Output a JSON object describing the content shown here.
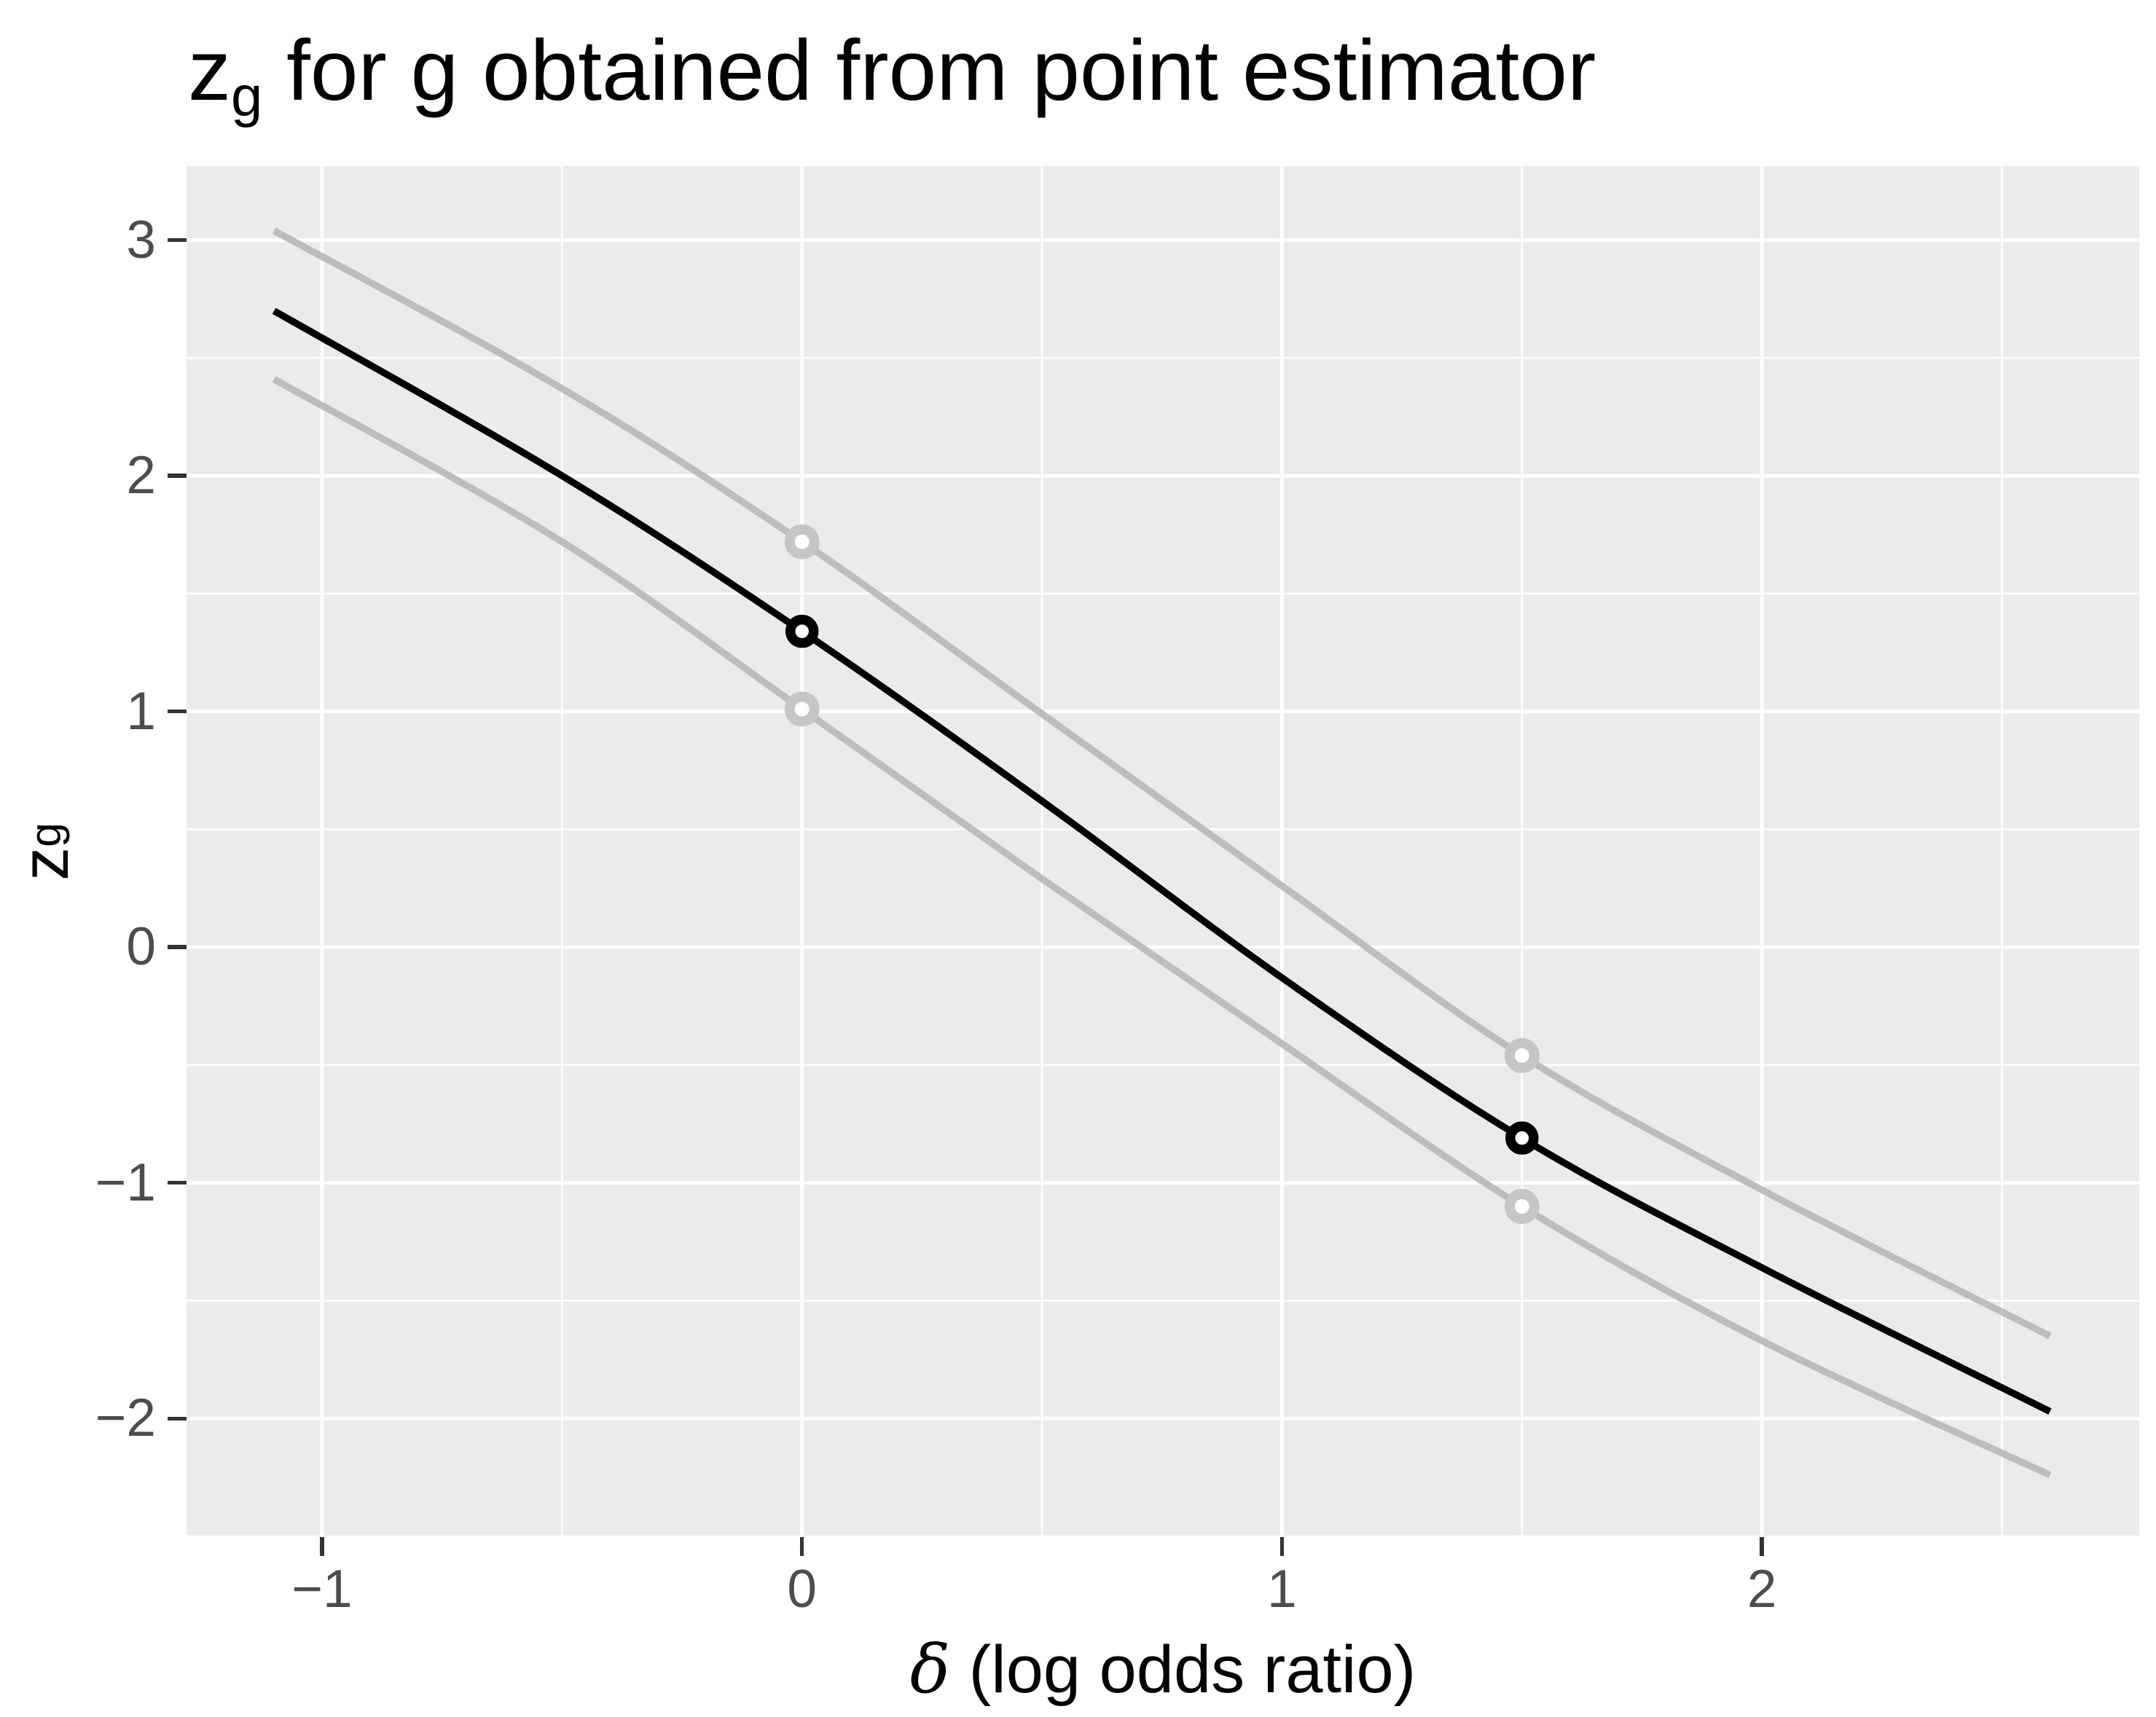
{
  "title": {
    "base": "z",
    "sub": "g",
    "rest": " for g obtained from point estimator"
  },
  "axes": {
    "x": {
      "title_symbol": "δ",
      "title_rest": " (log odds ratio)"
    },
    "y": {
      "title_base": "z",
      "title_sub": "g"
    }
  },
  "chart_data": {
    "type": "line",
    "title": "z_g for g obtained from point estimator",
    "xlabel": "δ (log odds ratio)",
    "ylabel": "z_g",
    "x_range": [
      -1.2823,
      2.786
    ],
    "y_range": [
      -2.503,
      3.314
    ],
    "grid": "on",
    "legend": "none",
    "x_ticks": [
      {
        "v": -1,
        "label": "−1"
      },
      {
        "v": 0,
        "label": "0"
      },
      {
        "v": 1,
        "label": "1"
      },
      {
        "v": 2,
        "label": "2"
      }
    ],
    "x_minor": [
      -0.5,
      0.5,
      1.5,
      2.5
    ],
    "y_ticks": [
      {
        "v": 3,
        "label": "3"
      },
      {
        "v": 2,
        "label": "2"
      },
      {
        "v": 1,
        "label": "1"
      },
      {
        "v": 0,
        "label": "0"
      },
      {
        "v": -1,
        "label": "−1"
      },
      {
        "v": -2,
        "label": "−2"
      }
    ],
    "y_minor": [
      2.5,
      1.5,
      0.5,
      -0.5,
      -1.5,
      -2.5
    ],
    "series": [
      {
        "name": "upper-gray-curve",
        "color": "#bdbdbd",
        "width": 9.5,
        "points": [
          [
            -1.1,
            3.04
          ],
          [
            -0.5,
            2.37
          ],
          [
            0,
            1.72
          ],
          [
            0.5,
            0.99
          ],
          [
            1,
            0.26
          ],
          [
            1.5,
            -0.46
          ],
          [
            2,
            -1.03
          ],
          [
            2.6,
            -1.65
          ]
        ]
      },
      {
        "name": "lower-gray-curve",
        "color": "#bdbdbd",
        "width": 9.5,
        "points": [
          [
            -1.1,
            2.41
          ],
          [
            -0.5,
            1.72
          ],
          [
            0,
            1.01
          ],
          [
            0.5,
            0.29
          ],
          [
            1,
            -0.41
          ],
          [
            1.5,
            -1.1
          ],
          [
            2,
            -1.67
          ],
          [
            2.6,
            -2.24
          ]
        ]
      },
      {
        "name": "point-estimator-curve",
        "color": "#000000",
        "width": 9.5,
        "points": [
          [
            -1.1,
            2.7
          ],
          [
            -0.5,
            2.0
          ],
          [
            0,
            1.34
          ],
          [
            0.5,
            0.62
          ],
          [
            1,
            -0.13
          ],
          [
            1.5,
            -0.81
          ],
          [
            2,
            -1.36
          ],
          [
            2.6,
            -1.97
          ]
        ]
      }
    ],
    "markers": [
      {
        "series": "upper-gray-curve",
        "x": 0,
        "y": 1.72,
        "color": "#c6c6c6",
        "r": 17,
        "stroke": 14
      },
      {
        "series": "upper-gray-curve",
        "x": 1.5,
        "y": -0.46,
        "color": "#c6c6c6",
        "r": 17,
        "stroke": 14
      },
      {
        "series": "lower-gray-curve",
        "x": 0,
        "y": 1.01,
        "color": "#c6c6c6",
        "r": 17,
        "stroke": 14
      },
      {
        "series": "lower-gray-curve",
        "x": 1.5,
        "y": -1.1,
        "color": "#c6c6c6",
        "r": 17,
        "stroke": 14
      },
      {
        "series": "point-estimator-curve",
        "x": 0,
        "y": 1.34,
        "color": "#000000",
        "r": 16,
        "stroke": 13.5
      },
      {
        "series": "point-estimator-curve",
        "x": 1.5,
        "y": -0.81,
        "color": "#000000",
        "r": 16,
        "stroke": 13.5
      }
    ],
    "style": {
      "panel_bg": "#ebebeb",
      "grid_color": "#ffffff",
      "major_grid_width": 5,
      "minor_grid_width": 2.5,
      "tick_color": "#333333",
      "tick_label_color": "#4d4d4d",
      "marker_fill": "#ffffff"
    }
  }
}
